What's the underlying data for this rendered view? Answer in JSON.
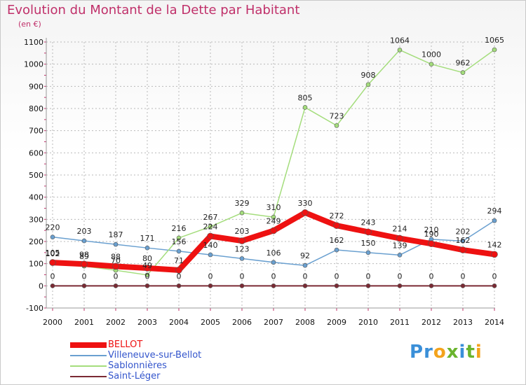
{
  "header": {
    "title": "Evolution du Montant de la Dette par Habitant",
    "subtitle": "(en €)"
  },
  "colors": {
    "title": "#c0306a",
    "grid": "#b9b9b9",
    "axis_tick": "#c0306a"
  },
  "chart_data": {
    "type": "line",
    "title": "Evolution du Montant de la Dette par Habitant",
    "ylabel": "(en €)",
    "xlabel": "",
    "x": [
      "2000",
      "2001",
      "2002",
      "2003",
      "2004",
      "2005",
      "2006",
      "2007",
      "2008",
      "2009",
      "2010",
      "2011",
      "2012",
      "2013",
      "2014"
    ],
    "ylim": [
      -100,
      1100
    ],
    "yticks": [
      -100,
      0,
      100,
      200,
      300,
      400,
      500,
      600,
      700,
      800,
      900,
      1000,
      1100
    ],
    "grid": true,
    "legend_position": "bottom-left",
    "series": [
      {
        "name": "Saint-Léger",
        "color": "#7b2a34",
        "width": 2,
        "marker": 4,
        "values": [
          0,
          0,
          0,
          0,
          0,
          0,
          0,
          0,
          0,
          0,
          0,
          0,
          0,
          0,
          0
        ],
        "labels": [
          "0",
          "0",
          "0",
          "0",
          "0",
          "0",
          "0",
          "0",
          "0",
          "0",
          "0",
          "0",
          "0",
          "0",
          "0"
        ]
      },
      {
        "name": "Villeneuve-sur-Bellot",
        "color": "#6aa0d0",
        "width": 1.5,
        "marker": 4,
        "values": [
          220,
          203,
          187,
          171,
          156,
          140,
          123,
          106,
          92,
          162,
          150,
          139,
          210,
          202,
          294
        ],
        "labels": [
          "220",
          "203",
          "187",
          "171",
          "156",
          "140",
          "123",
          "106",
          "92",
          "162",
          "150",
          "139",
          "210",
          "202",
          "294"
        ]
      },
      {
        "name": "Sablonnières",
        "color": "#a4dd7c",
        "width": 1.5,
        "marker": 4,
        "values": [
          102,
          89,
          70,
          49,
          216,
          267,
          329,
          310,
          805,
          723,
          908,
          1064,
          1000,
          962,
          1065
        ],
        "labels": [
          "102",
          "89",
          "70",
          "49",
          "216",
          "267",
          "329",
          "310",
          "805",
          "723",
          "908",
          "1064",
          "1000",
          "962",
          "1065"
        ]
      },
      {
        "name": "BELLOT",
        "color": "#ee1111",
        "width": 8,
        "marker": 7,
        "values": [
          105,
          98,
          88,
          80,
          71,
          224,
          203,
          249,
          330,
          272,
          243,
          214,
          190,
          162,
          142
        ],
        "labels": [
          "105",
          "98",
          "88",
          "80",
          "71",
          "224",
          "203",
          "249",
          "330",
          "272",
          "243",
          "214",
          "190",
          "162",
          "142"
        ]
      }
    ]
  },
  "legend": {
    "items": [
      {
        "label": "BELLOT",
        "color": "#ee1111",
        "width": 8
      },
      {
        "label": "Villeneuve-sur-Bellot",
        "color": "#6aa0d0",
        "width": 2
      },
      {
        "label": "Sablonnières",
        "color": "#a4dd7c",
        "width": 2
      },
      {
        "label": "Saint-Léger",
        "color": "#7b2a34",
        "width": 2
      }
    ]
  },
  "logo": {
    "letters": [
      "P",
      "r",
      "o",
      "x",
      "i",
      "t",
      "i"
    ],
    "colors": [
      "#3a8fd8",
      "#3a8fd8",
      "#f3a31c",
      "#6ab42d",
      "#3a8fd8",
      "#6ab42d",
      "#f3a31c"
    ]
  }
}
